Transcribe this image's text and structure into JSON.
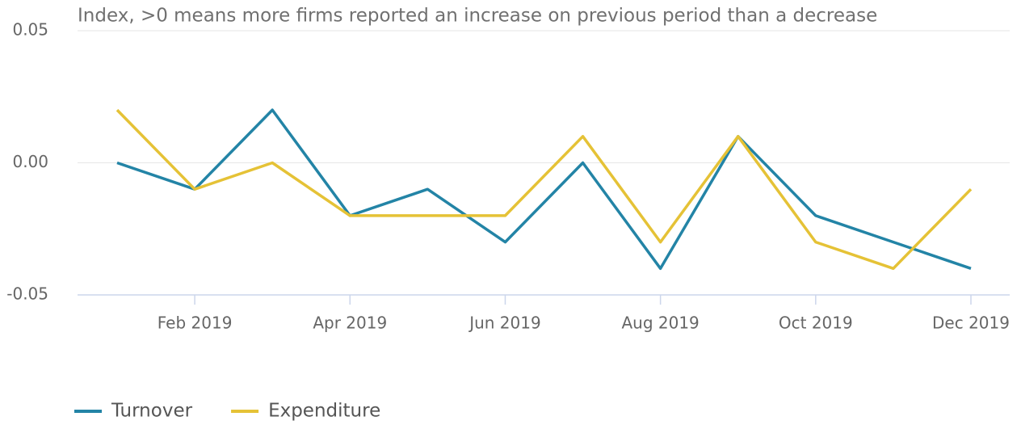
{
  "chart_data": {
    "type": "line",
    "subtitle": "Index, >0 means more firms reported an increase on previous period than a decrease",
    "categories": [
      null,
      "Feb 2019",
      null,
      "Apr 2019",
      null,
      "Jun 2019",
      null,
      "Aug 2019",
      null,
      "Oct 2019",
      null,
      "Dec 2019"
    ],
    "series": [
      {
        "name": "Turnover",
        "color": "#2384a6",
        "values": [
          0,
          -0.01,
          0.02,
          -0.02,
          -0.01,
          -0.03,
          0,
          -0.04,
          0.01,
          -0.02,
          -0.03,
          -0.04
        ]
      },
      {
        "name": "Expenditure",
        "color": "#e5c236",
        "values": [
          0.02,
          -0.01,
          0,
          -0.02,
          -0.02,
          -0.02,
          0.01,
          -0.03,
          0.01,
          -0.03,
          -0.04,
          -0.01
        ]
      }
    ],
    "ylim": [
      -0.05,
      0.05
    ],
    "yticks": [
      -0.05,
      {
        "value": 0,
        "label": "0.00"
      },
      0.05
    ],
    "grid": true,
    "legend": "bottom-left"
  }
}
